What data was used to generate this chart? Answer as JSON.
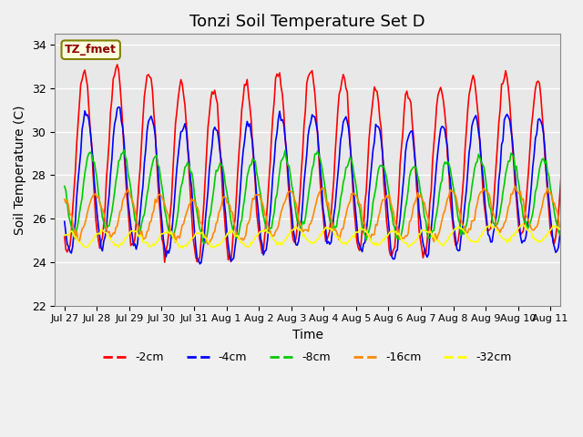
{
  "title": "Tonzi Soil Temperature Set D",
  "xlabel": "Time",
  "ylabel": "Soil Temperature (C)",
  "ylim": [
    22,
    34.5
  ],
  "series_colors": {
    "-2cm": "#ff0000",
    "-4cm": "#0000ff",
    "-8cm": "#00cc00",
    "-16cm": "#ff8800",
    "-32cm": "#ffff00"
  },
  "legend_label": "TZ_fmet",
  "tick_labels": [
    "Jul 27",
    "Jul 28",
    "Jul 29",
    "Jul 30",
    "Jul 31",
    "Aug 1",
    "Aug 2",
    "Aug 3",
    "Aug 4",
    "Aug 5",
    "Aug 6",
    "Aug 7",
    "Aug 8",
    "Aug 9",
    "Aug 10",
    "Aug 11"
  ],
  "n_days": 16,
  "background_color": "#e8e8e8",
  "fig_background_color": "#f0f0f0",
  "grid_color": "#ffffff",
  "title_fontsize": 13,
  "axis_fontsize": 10,
  "tick_fontsize": 8
}
